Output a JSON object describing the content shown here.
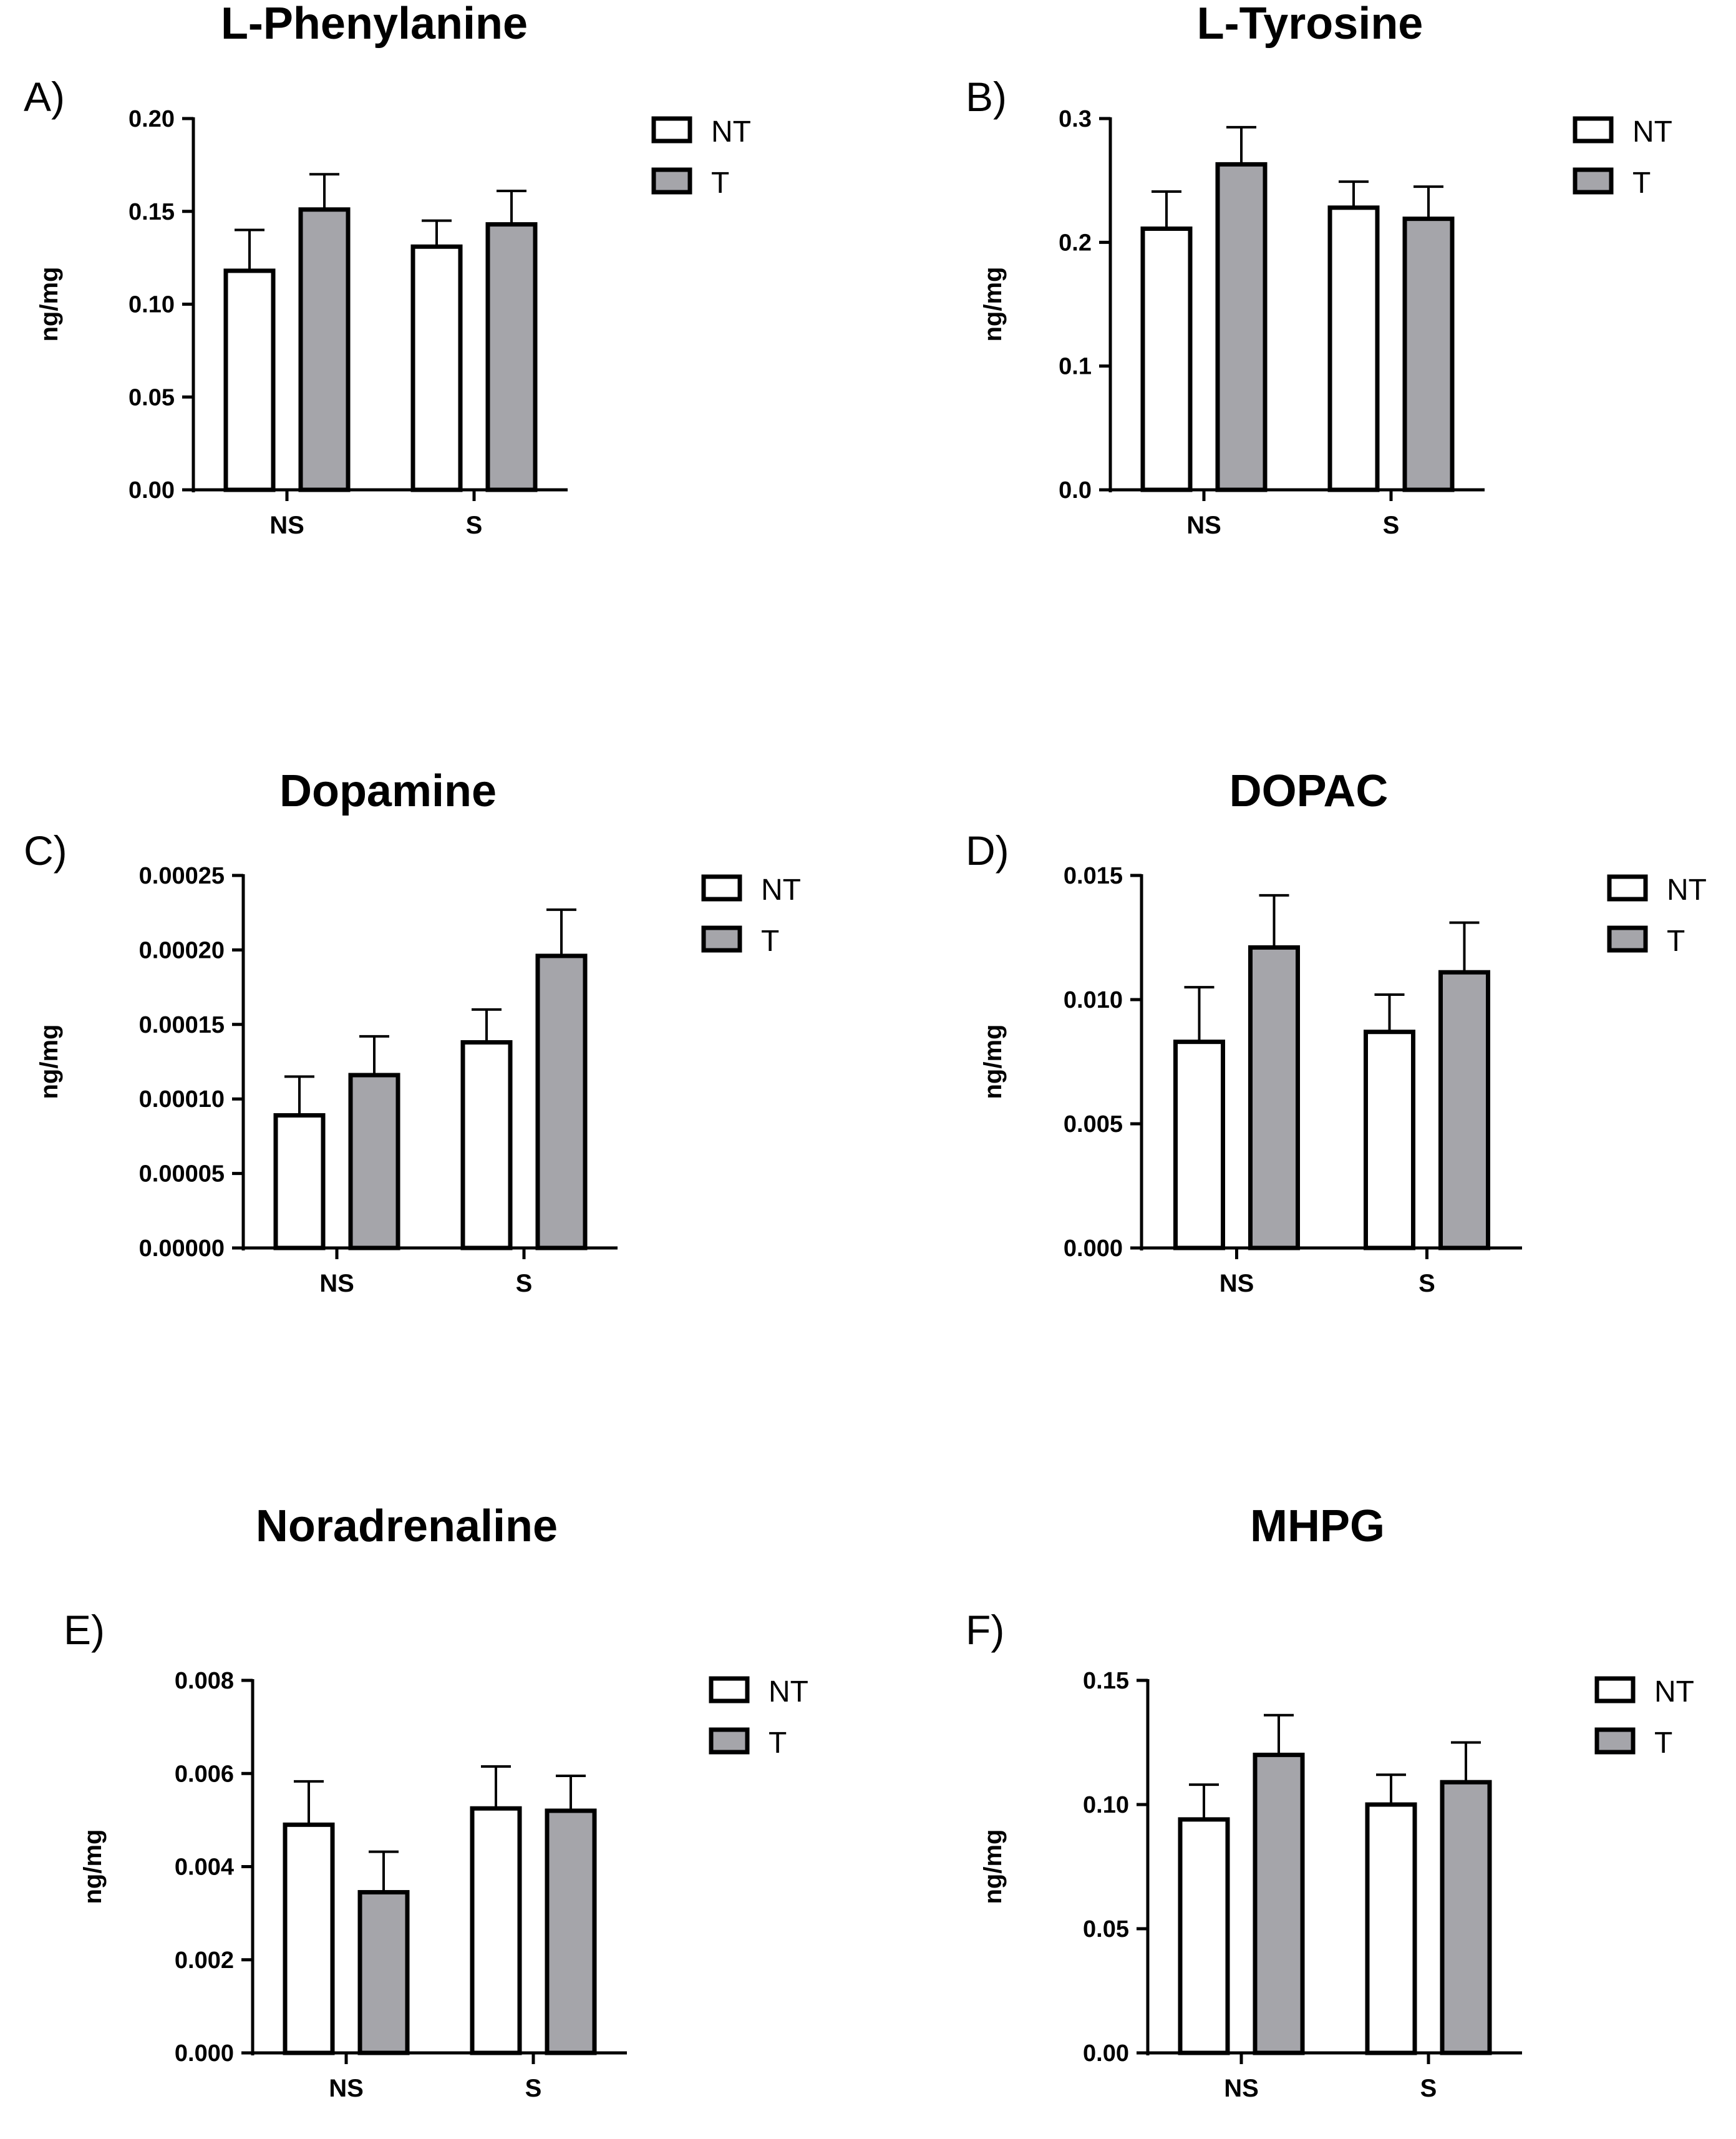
{
  "colors": {
    "NT": "#ffffff",
    "T": "#a5a5aa",
    "stroke": "#000000"
  },
  "chart_data": [
    {
      "type": "bar",
      "panel": "A)",
      "title": "L-Phenylanine",
      "ylabel": "ng/mg",
      "xlabel": "",
      "categories": [
        "NS",
        "S"
      ],
      "ylim": [
        0,
        0.2
      ],
      "yticks": [
        "0.00",
        "0.05",
        "0.10",
        "0.15",
        "0.20"
      ],
      "series": [
        {
          "name": "NT",
          "values": [
            0.118,
            0.131
          ],
          "errors": [
            0.022,
            0.014
          ]
        },
        {
          "name": "T",
          "values": [
            0.151,
            0.143
          ],
          "errors": [
            0.019,
            0.018
          ]
        }
      ]
    },
    {
      "type": "bar",
      "panel": "B)",
      "title": "L-Tyrosine",
      "ylabel": "ng/mg",
      "xlabel": "",
      "categories": [
        "NS",
        "S"
      ],
      "ylim": [
        0,
        0.3
      ],
      "yticks": [
        "0.0",
        "0.1",
        "0.2",
        "0.3"
      ],
      "series": [
        {
          "name": "NT",
          "values": [
            0.211,
            0.228
          ],
          "errors": [
            0.03,
            0.021
          ]
        },
        {
          "name": "T",
          "values": [
            0.263,
            0.219
          ],
          "errors": [
            0.03,
            0.026
          ]
        }
      ]
    },
    {
      "type": "bar",
      "panel": "C)",
      "title": "Dopamine",
      "ylabel": "ng/mg",
      "xlabel": "",
      "categories": [
        "NS",
        "S"
      ],
      "ylim": [
        0,
        0.00025
      ],
      "yticks": [
        "0.00000",
        "0.00005",
        "0.00010",
        "0.00015",
        "0.00020",
        "0.00025"
      ],
      "series": [
        {
          "name": "NT",
          "values": [
            8.9e-05,
            0.000138
          ],
          "errors": [
            2.6e-05,
            2.2e-05
          ]
        },
        {
          "name": "T",
          "values": [
            0.000116,
            0.000196
          ],
          "errors": [
            2.6e-05,
            3.1e-05
          ]
        }
      ]
    },
    {
      "type": "bar",
      "panel": "D)",
      "title": "DOPAC",
      "ylabel": "ng/mg",
      "xlabel": "",
      "categories": [
        "NS",
        "S"
      ],
      "ylim": [
        0,
        0.015
      ],
      "yticks": [
        "0.000",
        "0.005",
        "0.010",
        "0.015"
      ],
      "series": [
        {
          "name": "NT",
          "values": [
            0.0083,
            0.0087
          ],
          "errors": [
            0.0022,
            0.0015
          ]
        },
        {
          "name": "T",
          "values": [
            0.0121,
            0.0111
          ],
          "errors": [
            0.0021,
            0.002
          ]
        }
      ]
    },
    {
      "type": "bar",
      "panel": "E)",
      "title": "Noradrenaline",
      "ylabel": "ng/mg",
      "xlabel": "",
      "categories": [
        "NS",
        "S"
      ],
      "ylim": [
        0,
        0.008
      ],
      "yticks": [
        "0.000",
        "0.002",
        "0.004",
        "0.006",
        "0.008"
      ],
      "series": [
        {
          "name": "NT",
          "values": [
            0.0049,
            0.00525
          ],
          "errors": [
            0.00093,
            0.0009
          ]
        },
        {
          "name": "T",
          "values": [
            0.00345,
            0.0052
          ],
          "errors": [
            0.00087,
            0.00075
          ]
        }
      ]
    },
    {
      "type": "bar",
      "panel": "F)",
      "title": "MHPG",
      "ylabel": "ng/mg",
      "xlabel": "",
      "categories": [
        "NS",
        "S"
      ],
      "ylim": [
        0,
        0.15
      ],
      "yticks": [
        "0.00",
        "0.05",
        "0.10",
        "0.15"
      ],
      "series": [
        {
          "name": "NT",
          "values": [
            0.094,
            0.1
          ],
          "errors": [
            0.014,
            0.012
          ]
        },
        {
          "name": "T",
          "values": [
            0.12,
            0.109
          ],
          "errors": [
            0.016,
            0.016
          ]
        }
      ]
    }
  ]
}
